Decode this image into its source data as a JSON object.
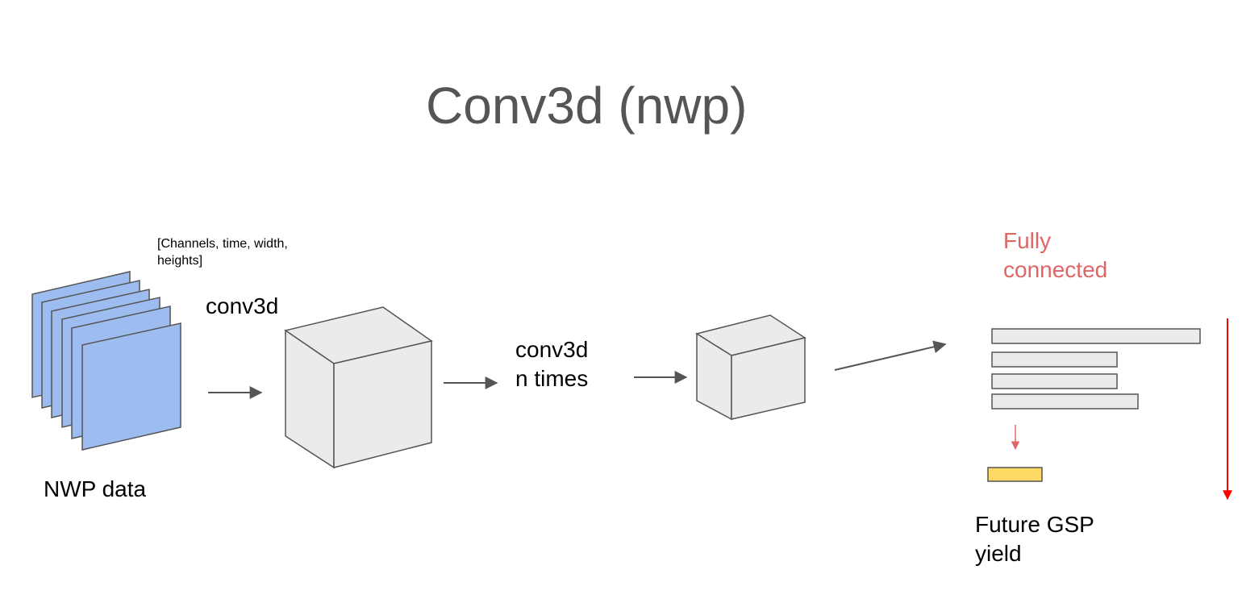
{
  "title": "Conv3d (nwp)",
  "labels": {
    "shape_line1": "[Channels, time, width,",
    "shape_line2": "heights]",
    "conv3d": "conv3d",
    "conv3d_n_line1": "conv3d",
    "conv3d_n_line2": "n times",
    "nwp_data": "NWP data",
    "fc_line1": "Fully",
    "fc_line2": "connected",
    "output_line1": "Future GSP",
    "output_line2": "yield"
  },
  "colors": {
    "plate_fill": "#9dbdf0",
    "cube_fill": "#ebebeb",
    "edge": "#555555",
    "fc_bar_fill": "#ebebeb",
    "output_fill": "#ffd966",
    "fc_text": "#e06666",
    "red_arrow": "#e06666",
    "long_red_arrow": "#ff0000"
  }
}
